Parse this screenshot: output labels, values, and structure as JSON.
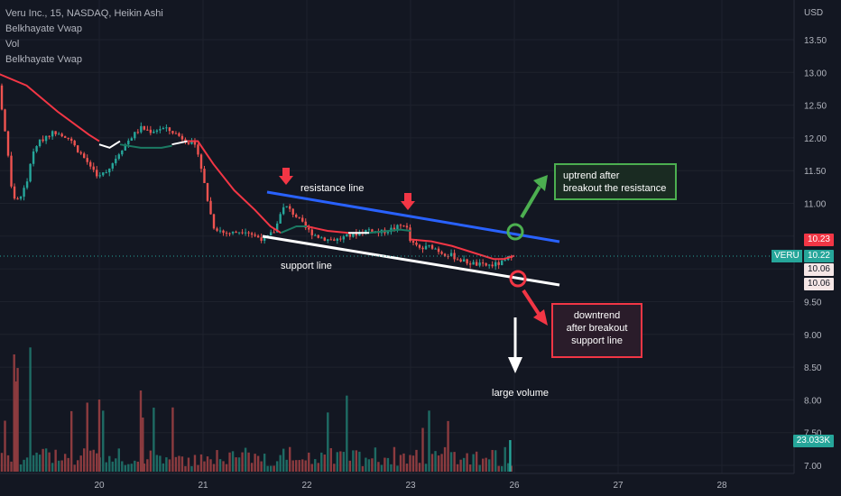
{
  "legend": {
    "title": "Veru Inc., 15, NASDAQ, Heikin Ashi",
    "ind1": "Belkhayate Vwap",
    "ind2": "Vol",
    "ind3": "Belkhayate Vwap"
  },
  "annotations": {
    "resistance": "resistance line",
    "support": "support line",
    "large_volume": "large volume",
    "uptrend_1": "uptrend after",
    "uptrend_2": "breakout the resistance",
    "downtrend_1": "downtrend",
    "downtrend_2": "after breakout",
    "downtrend_3": "support line"
  },
  "price_tags": {
    "ticker": "VERU",
    "t1": "10.23",
    "t2": "10.22",
    "t3": "10.06",
    "t4": "10.06",
    "vol": "23.033K"
  },
  "colors": {
    "up": "#26a69a",
    "down": "#ef5350",
    "resistance": "#2962ff",
    "support": "#ffffff",
    "vwap_red": "#f23645",
    "vwap_white": "#ffffff",
    "vwap_green": "#1b7a63",
    "up_box": "#4caf50",
    "down_box": "#f23645"
  },
  "chart_data": {
    "type": "candlestick",
    "y_axis_label": "USD",
    "y_ticks": [
      13.5,
      13.0,
      12.5,
      12.0,
      11.5,
      11.0,
      10.5,
      10.0,
      9.5,
      9.0,
      8.5,
      8.0,
      7.5,
      7.0
    ],
    "y_tick_labels": [
      "13.50",
      "13.00",
      "12.50",
      "12.00",
      "11.50",
      "11.00",
      "10.50",
      "10.00",
      "9.50",
      "9.00",
      "8.50",
      "8.00",
      "7.50",
      "7.00"
    ],
    "x_ticks": [
      20,
      21,
      22,
      23,
      26,
      27,
      28
    ],
    "x_tick_labels": [
      "20",
      "21",
      "22",
      "23",
      "26",
      "27",
      "28"
    ],
    "price_series": [
      [
        19.0,
        13.2
      ],
      [
        19.05,
        12.6
      ],
      [
        19.1,
        12.0
      ],
      [
        19.15,
        11.3
      ],
      [
        19.2,
        11.0
      ],
      [
        19.3,
        11.3
      ],
      [
        19.35,
        11.7
      ],
      [
        19.4,
        11.9
      ],
      [
        19.5,
        12.05
      ],
      [
        19.6,
        12.1
      ],
      [
        19.7,
        12.0
      ],
      [
        19.8,
        11.8
      ],
      [
        19.9,
        11.6
      ],
      [
        20.0,
        11.4
      ],
      [
        20.1,
        11.55
      ],
      [
        20.2,
        11.8
      ],
      [
        20.3,
        12.0
      ],
      [
        20.4,
        12.15
      ],
      [
        20.5,
        12.1
      ],
      [
        20.6,
        12.15
      ],
      [
        20.7,
        12.1
      ],
      [
        20.8,
        12.0
      ],
      [
        20.9,
        11.9
      ],
      [
        20.95,
        11.8
      ],
      [
        21.0,
        11.4
      ],
      [
        21.05,
        11.0
      ],
      [
        21.1,
        10.65
      ],
      [
        21.2,
        10.55
      ],
      [
        21.3,
        10.55
      ],
      [
        21.4,
        10.6
      ],
      [
        21.5,
        10.5
      ],
      [
        21.6,
        10.45
      ],
      [
        21.7,
        10.6
      ],
      [
        21.75,
        10.9
      ],
      [
        21.8,
        10.95
      ],
      [
        21.9,
        10.8
      ],
      [
        22.0,
        10.6
      ],
      [
        22.1,
        10.5
      ],
      [
        22.2,
        10.45
      ],
      [
        22.3,
        10.45
      ],
      [
        22.4,
        10.5
      ],
      [
        22.5,
        10.55
      ],
      [
        22.6,
        10.6
      ],
      [
        22.7,
        10.55
      ],
      [
        22.8,
        10.6
      ],
      [
        22.9,
        10.65
      ],
      [
        22.95,
        10.7
      ],
      [
        23.0,
        10.4
      ],
      [
        23.1,
        10.3
      ],
      [
        23.2,
        10.35
      ],
      [
        23.3,
        10.25
      ],
      [
        23.4,
        10.2
      ],
      [
        23.5,
        10.12
      ],
      [
        23.6,
        10.08
      ],
      [
        23.7,
        10.05
      ],
      [
        23.8,
        10.06
      ],
      [
        23.9,
        10.1
      ],
      [
        24.0,
        10.25
      ]
    ],
    "volume_ticks": [
      7.5,
      8.0,
      8.5
    ],
    "volume_last": "23.033K"
  }
}
